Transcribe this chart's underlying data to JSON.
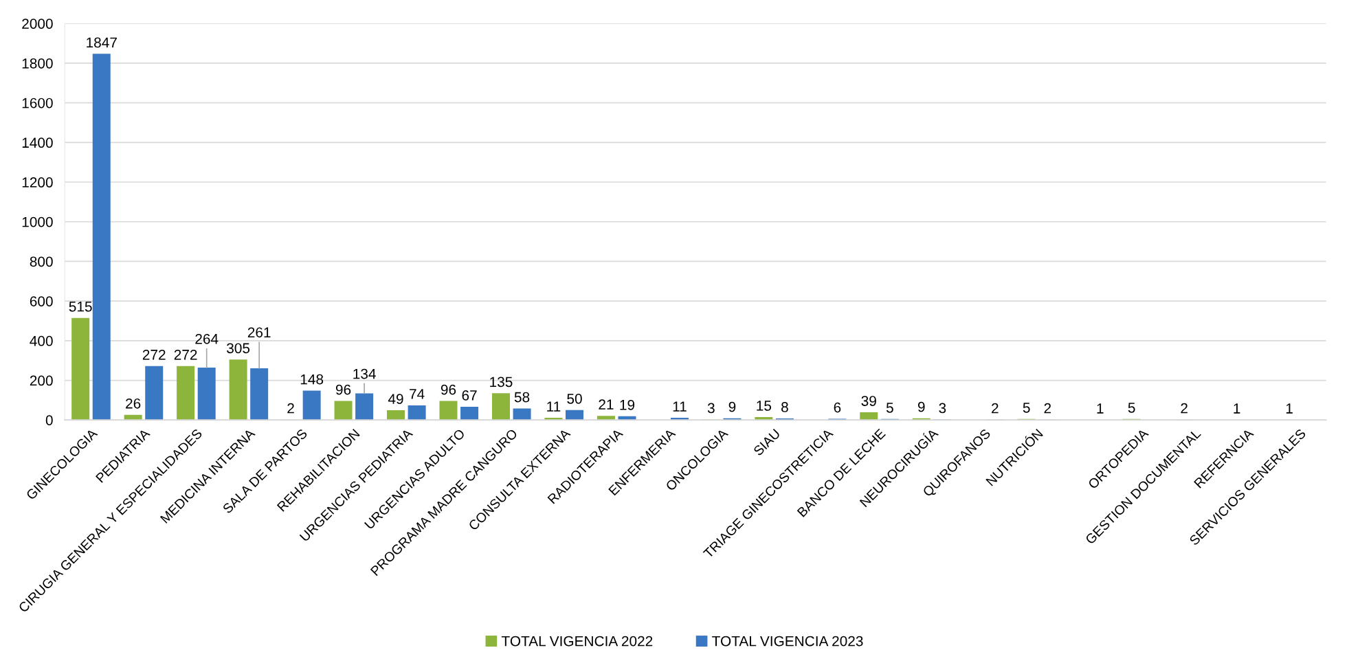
{
  "chart_data": {
    "type": "bar",
    "categories": [
      "GINECOLOGIA",
      "PEDIATRIA",
      "CIRUGIA GENERAL Y ESPECIALIDADES",
      "MEDICINA INTERNA",
      "SALA DE PARTOS",
      "REHABILITACION",
      "URGENCIAS PEDIATRIA",
      "URGENCIAS ADULTO",
      "PROGRAMA MADRE CANGURO",
      "CONSULTA EXTERNA",
      "RADIOTERAPIA",
      "ENFERMERIA",
      "ONCOLOGIA",
      "SIAU",
      "TRIAGE GINECOSTRETICIA",
      "BANCO DE LECHE",
      "NEUROCIRUGÍA",
      "QUIROFANOS",
      "NUTRICIÓN",
      null,
      "ORTOPEDIA",
      "GESTION DOCUMENTAL",
      "REFERNCIA",
      "SERVICIOS GENERALES"
    ],
    "series": [
      {
        "name": "TOTAL VIGENCIA 2022",
        "color": "#8db53c",
        "values": [
          515,
          26,
          272,
          305,
          2,
          96,
          49,
          96,
          135,
          11,
          21,
          null,
          3,
          15,
          null,
          39,
          9,
          null,
          5,
          null,
          5,
          2,
          1,
          1
        ]
      },
      {
        "name": "TOTAL VIGENCIA 2023",
        "color": "#3b78c3",
        "values": [
          1847,
          272,
          264,
          261,
          148,
          134,
          74,
          67,
          58,
          50,
          19,
          11,
          9,
          8,
          6,
          5,
          3,
          2,
          2,
          1,
          null,
          null,
          null,
          null
        ]
      }
    ],
    "ylim": [
      0,
      2000
    ],
    "yticks": [
      0,
      200,
      400,
      600,
      800,
      1000,
      1200,
      1400,
      1600,
      1800,
      2000
    ],
    "grid": "y",
    "legend": "bottom",
    "data_labels": true
  }
}
